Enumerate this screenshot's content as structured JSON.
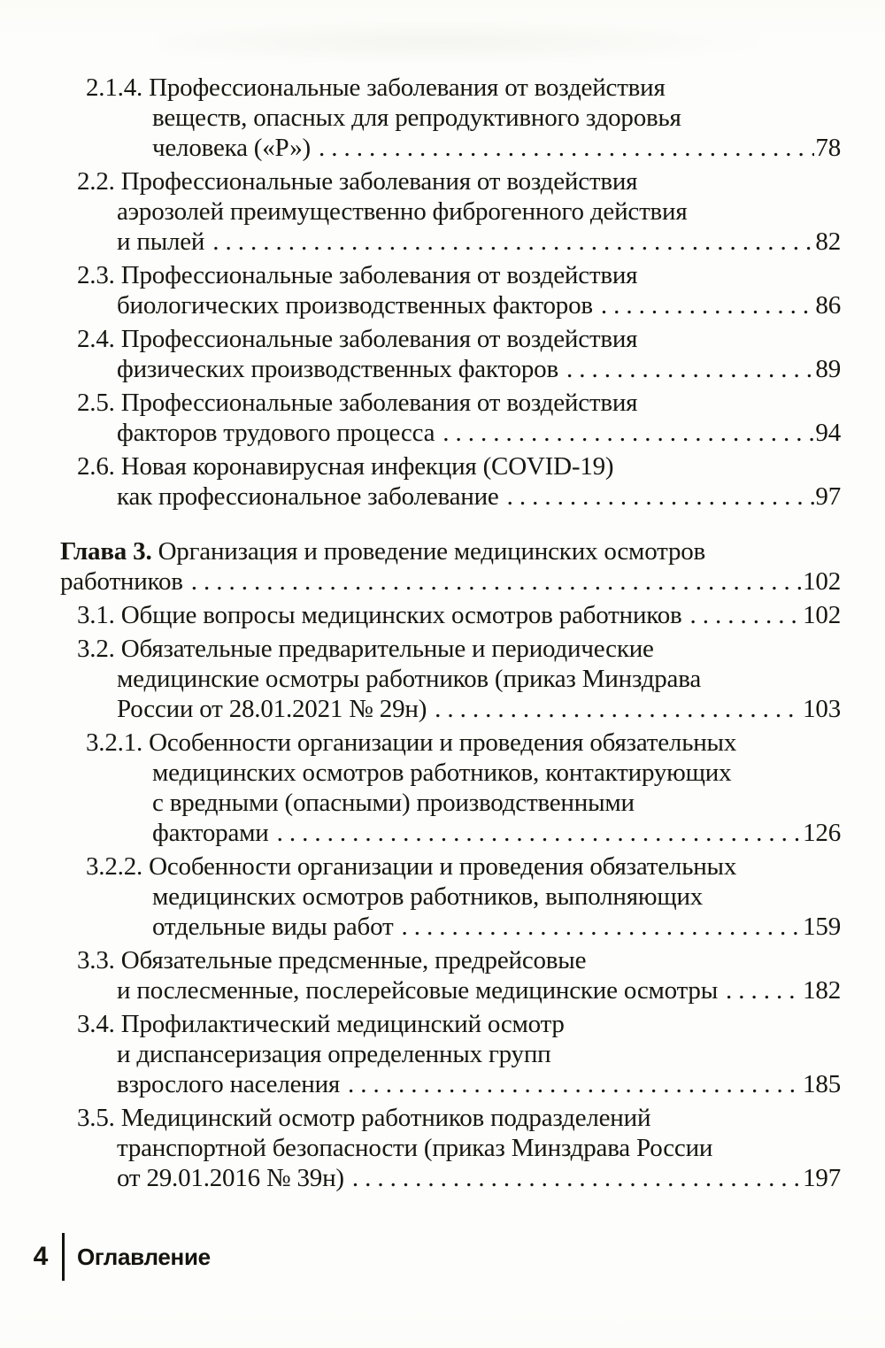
{
  "document": {
    "type": "book-table-of-contents-scan",
    "language": "ru",
    "running_title": "Оглавление",
    "page_number": "4",
    "text_color": "#17160f",
    "background_color": "#fdfdfb"
  },
  "toc": {
    "entries": [
      {
        "level": 2,
        "num": "2.1.4.",
        "bold_num": false,
        "gap_before": false,
        "lines": [
          "Профессиональные заболевания от воздействия",
          "веществ, опасных для репродуктивного здоровья",
          "человека («Р»)"
        ],
        "page": "78"
      },
      {
        "level": 1,
        "num": "2.2.",
        "bold_num": false,
        "gap_before": false,
        "lines": [
          "Профессиональные заболевания от воздействия",
          "аэрозолей преимущественно фиброгенного действия",
          "и пылей"
        ],
        "page": "82"
      },
      {
        "level": 1,
        "num": "2.3.",
        "bold_num": false,
        "gap_before": false,
        "lines": [
          "Профессиональные заболевания от воздействия",
          "биологических производственных факторов"
        ],
        "page": "86"
      },
      {
        "level": 1,
        "num": "2.4.",
        "bold_num": false,
        "gap_before": false,
        "lines": [
          "Профессиональные заболевания от воздействия",
          "физических производственных факторов"
        ],
        "page": "89"
      },
      {
        "level": 1,
        "num": "2.5.",
        "bold_num": false,
        "gap_before": false,
        "lines": [
          "Профессиональные заболевания от воздействия",
          "факторов трудового процесса"
        ],
        "page": "94"
      },
      {
        "level": 1,
        "num": "2.6.",
        "bold_num": false,
        "gap_before": false,
        "lines": [
          "Новая коронавирусная инфекция (COVID-19)",
          "как профессиональное заболевание"
        ],
        "page": "97"
      },
      {
        "level": 0,
        "num": "Глава 3.",
        "bold_num": true,
        "gap_before": true,
        "lines": [
          "Организация и проведение медицинских осмотров",
          "работников"
        ],
        "page": "102"
      },
      {
        "level": 1,
        "num": "3.1.",
        "bold_num": false,
        "gap_before": false,
        "lines": [
          "Общие вопросы медицинских осмотров работников"
        ],
        "page": "102"
      },
      {
        "level": 1,
        "num": "3.2.",
        "bold_num": false,
        "gap_before": false,
        "lines": [
          "Обязательные предварительные и периодические",
          "медицинские осмотры работников (приказ Минздрава",
          "России от 28.01.2021 № 29н)"
        ],
        "page": "103"
      },
      {
        "level": 2,
        "num": "3.2.1.",
        "bold_num": false,
        "gap_before": false,
        "lines": [
          "Особенности организации и проведения обязательных",
          "медицинских осмотров работников, контактирующих",
          "с вредными (опасными) производственными",
          "факторами"
        ],
        "page": "126"
      },
      {
        "level": 2,
        "num": "3.2.2.",
        "bold_num": false,
        "gap_before": false,
        "lines": [
          "Особенности организации и проведения обязательных",
          "медицинских осмотров работников, выполняющих",
          "отдельные виды работ"
        ],
        "page": "159"
      },
      {
        "level": 1,
        "num": "3.3.",
        "bold_num": false,
        "gap_before": false,
        "lines": [
          "Обязательные предсменные, предрейсовые",
          "и послесменные, послерейсовые медицинские осмотры"
        ],
        "page": "182"
      },
      {
        "level": 1,
        "num": "3.4.",
        "bold_num": false,
        "gap_before": false,
        "lines": [
          "Профилактический медицинский осмотр",
          "и диспансеризация определенных групп",
          "взрослого населения"
        ],
        "page": "185"
      },
      {
        "level": 1,
        "num": "3.5.",
        "bold_num": false,
        "gap_before": false,
        "lines": [
          "Медицинский осмотр работников подразделений",
          "транспортной безопасности (приказ Минздрава России",
          "от 29.01.2016 № 39н)"
        ],
        "page": "197"
      }
    ]
  },
  "footer": {
    "page_number": "4",
    "section_title": "Оглавление"
  }
}
